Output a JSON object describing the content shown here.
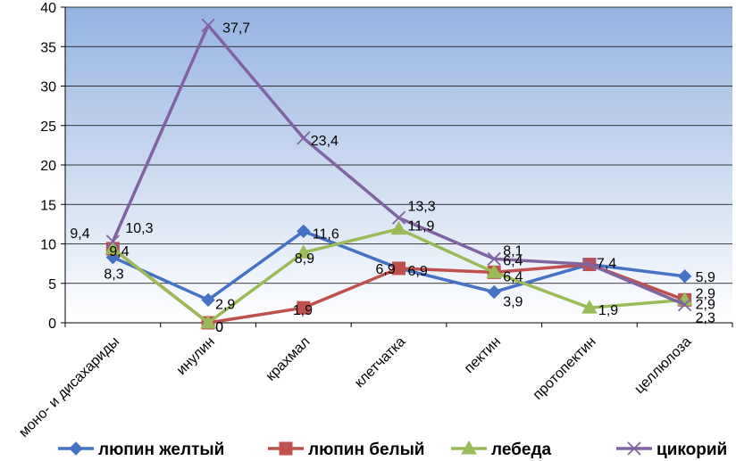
{
  "chart_data": {
    "type": "line",
    "title": "",
    "xlabel": "",
    "ylabel": "",
    "ylim": [
      0,
      40
    ],
    "yticks": [
      0,
      5,
      10,
      15,
      20,
      25,
      30,
      35,
      40
    ],
    "grid": true,
    "legend_position": "bottom",
    "categories": [
      "моно- и дисахариды",
      "инулин",
      "крахмал",
      "клетчатка",
      "пектин",
      "протопектин",
      "целлюлоза"
    ],
    "series": [
      {
        "name": "люпин желтый",
        "color": "#4472C4",
        "marker": "diamond",
        "values": [
          8.3,
          2.9,
          11.6,
          6.9,
          3.9,
          7.4,
          5.9
        ],
        "labels": [
          "8,3",
          "2,9",
          "11,6",
          "6,9",
          "3,9",
          "7,4",
          "5,9"
        ]
      },
      {
        "name": "люпин белый",
        "color": "#C0504D",
        "marker": "square",
        "values": [
          9.4,
          0,
          1.9,
          6.9,
          6.4,
          7.4,
          2.9
        ],
        "labels": [
          "9,4",
          "0",
          "1,9",
          "6,9",
          "6,4",
          "7,4",
          "2,9"
        ]
      },
      {
        "name": "лебеда",
        "color": "#9BBB59",
        "marker": "triangle",
        "values": [
          9.4,
          0,
          8.9,
          11.9,
          6.4,
          1.9,
          2.9
        ],
        "labels": [
          "9,4",
          "0",
          "8,9",
          "11,9",
          "6,4",
          "1,9",
          "2,9"
        ]
      },
      {
        "name": "цикорий",
        "color": "#8064A2",
        "marker": "x",
        "values": [
          10.3,
          37.7,
          23.4,
          13.3,
          8.1,
          7.4,
          2.3
        ],
        "labels": [
          "10,3",
          "37,7",
          "23,4",
          "13,3",
          "8,1",
          "7,4",
          "2,3"
        ]
      }
    ]
  }
}
